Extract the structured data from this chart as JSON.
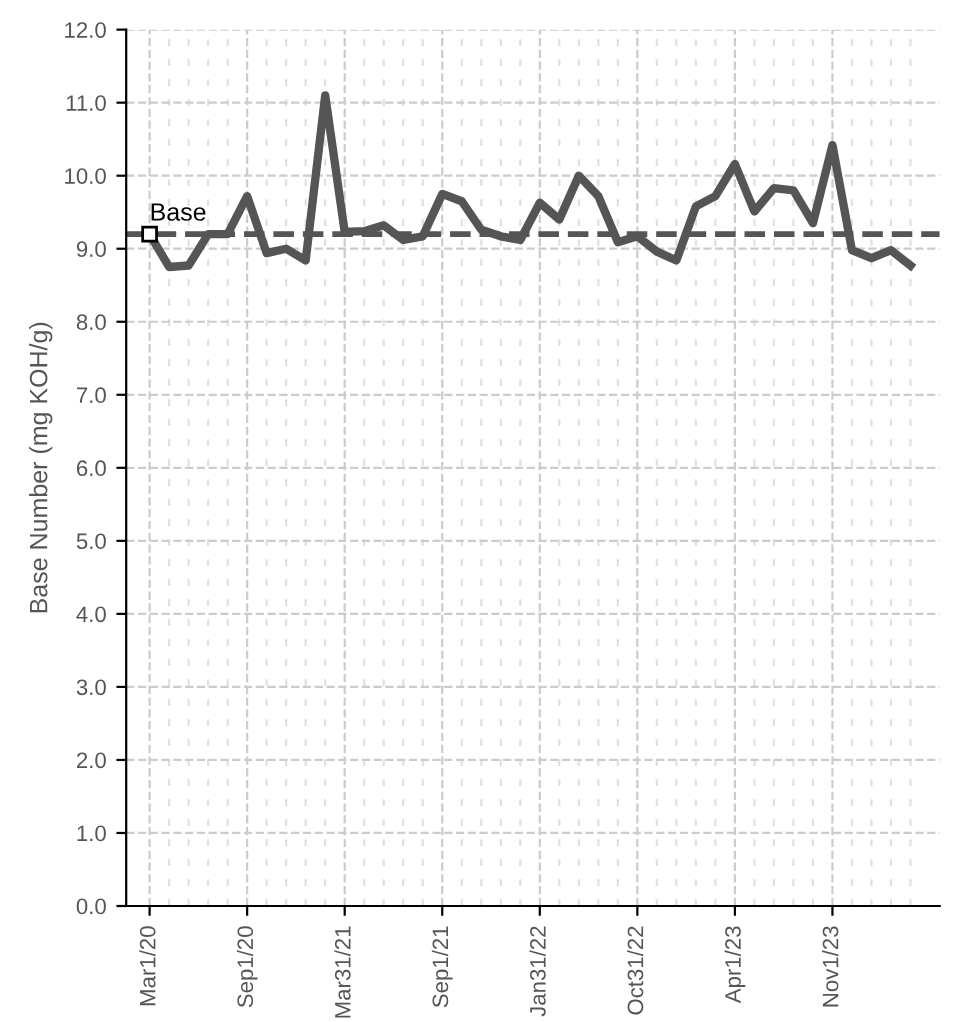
{
  "chart_data": {
    "type": "line",
    "ylabel": "Base Number (mg KOH/g)",
    "categories": [
      "Mar1/20",
      null,
      null,
      null,
      null,
      "Sep1/20",
      null,
      null,
      null,
      null,
      "Mar31/21",
      null,
      null,
      null,
      null,
      "Sep1/21",
      null,
      null,
      null,
      null,
      "Jan31/22",
      null,
      null,
      null,
      null,
      "Oct31/22",
      null,
      null,
      null,
      null,
      "Apr1/23",
      null,
      null,
      null,
      null,
      "Nov1/23",
      null,
      null,
      null,
      null
    ],
    "series": [
      {
        "color": "#555555",
        "values": [
          9.2,
          8.75,
          8.77,
          9.2,
          9.2,
          9.72,
          8.94,
          9.0,
          8.84,
          11.1,
          9.23,
          9.24,
          9.32,
          9.12,
          9.17,
          9.75,
          9.65,
          9.26,
          9.17,
          9.12,
          9.63,
          9.4,
          10.0,
          9.72,
          9.09,
          9.17,
          8.96,
          8.84,
          9.58,
          9.72,
          10.16,
          9.51,
          9.83,
          9.8,
          9.35,
          10.42,
          8.98,
          8.87,
          8.98,
          8.77
        ]
      }
    ],
    "ylim": [
      0,
      12
    ],
    "yticks": [
      {
        "value": 0,
        "label": "0.0"
      },
      {
        "value": 1,
        "label": "1.0"
      },
      {
        "value": 2,
        "label": "2.0"
      },
      {
        "value": 3,
        "label": "3.0"
      },
      {
        "value": 4,
        "label": "4.0"
      },
      {
        "value": 5,
        "label": "5.0"
      },
      {
        "value": 6,
        "label": "6.0"
      },
      {
        "value": 7,
        "label": "7.0"
      },
      {
        "value": 8,
        "label": "8.0"
      },
      {
        "value": 9,
        "label": "9.0"
      },
      {
        "value": 10,
        "label": "10.0"
      },
      {
        "value": 11,
        "label": "11.0"
      },
      {
        "value": 12,
        "label": "12.0"
      }
    ],
    "ref_lines": [
      {
        "axis": "y",
        "value": 9.2,
        "label": "Base",
        "color": "#555555",
        "line_style": "dashed"
      }
    ],
    "grid": true,
    "marker": "none",
    "line_style": "solid",
    "legend": false
  }
}
